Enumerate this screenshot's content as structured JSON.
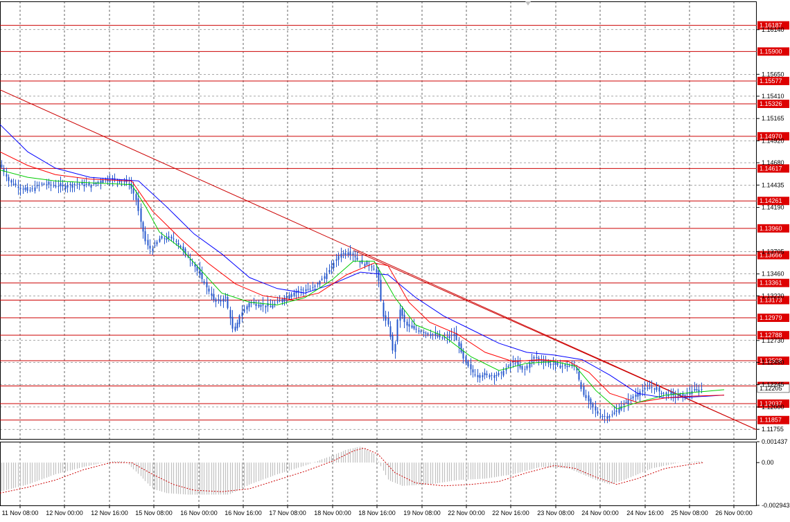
{
  "chart_data": [
    {
      "type": "candlestick",
      "symbol_panel": "main",
      "ylim": [
        1.1165,
        1.1645
      ],
      "price_ticks": [
        "1.16140",
        "1.15650",
        "1.15410",
        "1.15165",
        "1.14920",
        "1.14680",
        "1.14435",
        "1.14190",
        "1.13705",
        "1.13460",
        "1.13220",
        "1.12730",
        "1.12490",
        "1.12245",
        "1.12000",
        "1.11755"
      ],
      "time_labels": [
        "11 Nov 08:00",
        "12 Nov 00:00",
        "12 Nov 16:00",
        "15 Nov 08:00",
        "16 Nov 00:00",
        "16 Nov 16:00",
        "17 Nov 08:00",
        "18 Nov 00:00",
        "18 Nov 16:00",
        "19 Nov 08:00",
        "22 Nov 00:00",
        "22 Nov 16:00",
        "23 Nov 08:00",
        "24 Nov 00:00",
        "24 Nov 16:00",
        "25 Nov 08:00",
        "26 Nov 00:00"
      ],
      "horizontal_levels": [
        "1.16187",
        "1.15900",
        "1.15577",
        "1.15326",
        "1.14970",
        "1.14617",
        "1.14261",
        "1.13960",
        "1.13666",
        "1.13361",
        "1.13173",
        "1.12979",
        "1.12788",
        "1.12508",
        "1.12231",
        "1.12037",
        "1.11857"
      ],
      "current_price": "1.12205",
      "price_path": [
        [
          0,
          1.1466
        ],
        [
          12,
          1.1448
        ],
        [
          25,
          1.1442
        ],
        [
          40,
          1.1437
        ],
        [
          60,
          1.1445
        ],
        [
          90,
          1.1442
        ],
        [
          110,
          1.1445
        ],
        [
          130,
          1.1443
        ],
        [
          150,
          1.145
        ],
        [
          170,
          1.1449
        ],
        [
          185,
          1.1446
        ],
        [
          195,
          1.143
        ],
        [
          202,
          1.1405
        ],
        [
          210,
          1.138
        ],
        [
          218,
          1.1372
        ],
        [
          230,
          1.1385
        ],
        [
          250,
          1.1385
        ],
        [
          265,
          1.137
        ],
        [
          280,
          1.1355
        ],
        [
          295,
          1.1335
        ],
        [
          310,
          1.1315
        ],
        [
          325,
          1.132
        ],
        [
          337,
          1.128
        ],
        [
          345,
          1.13
        ],
        [
          360,
          1.1315
        ],
        [
          375,
          1.1312
        ],
        [
          390,
          1.131
        ],
        [
          410,
          1.132
        ],
        [
          430,
          1.1328
        ],
        [
          450,
          1.133
        ],
        [
          470,
          1.1345
        ],
        [
          490,
          1.1368
        ],
        [
          505,
          1.137
        ],
        [
          520,
          1.1358
        ],
        [
          535,
          1.1355
        ],
        [
          545,
          1.1345
        ],
        [
          552,
          1.13
        ],
        [
          560,
          1.129
        ],
        [
          568,
          1.1255
        ],
        [
          575,
          1.131
        ],
        [
          585,
          1.129
        ],
        [
          600,
          1.1285
        ],
        [
          620,
          1.128
        ],
        [
          640,
          1.1275
        ],
        [
          655,
          1.128
        ],
        [
          670,
          1.125
        ],
        [
          685,
          1.1235
        ],
        [
          700,
          1.1235
        ],
        [
          720,
          1.1235
        ],
        [
          740,
          1.125
        ],
        [
          755,
          1.124
        ],
        [
          770,
          1.1255
        ],
        [
          790,
          1.1248
        ],
        [
          810,
          1.1245
        ],
        [
          830,
          1.1245
        ],
        [
          840,
          1.1215
        ],
        [
          850,
          1.1205
        ],
        [
          865,
          1.119
        ],
        [
          880,
          1.119
        ],
        [
          895,
          1.12
        ],
        [
          910,
          1.121
        ],
        [
          925,
          1.1218
        ],
        [
          940,
          1.1222
        ],
        [
          955,
          1.1215
        ],
        [
          970,
          1.1213
        ],
        [
          985,
          1.1212
        ],
        [
          1000,
          1.1218
        ],
        [
          1015,
          1.122
        ]
      ],
      "trendlines": [
        {
          "color": "#cc0000",
          "from": [
            0,
            1.1548
          ],
          "to": [
            1092,
            1.1175
          ]
        },
        {
          "color": "#cc0000",
          "from": [
            510,
            1.1372
          ],
          "to": [
            1092,
            1.1175
          ]
        }
      ],
      "moving_averages": [
        {
          "color": "#0000ff",
          "points": [
            [
              0,
              1.151
            ],
            [
              40,
              1.148
            ],
            [
              80,
              1.1462
            ],
            [
              130,
              1.1452
            ],
            [
              200,
              1.1448
            ],
            [
              240,
              1.142
            ],
            [
              280,
              1.139
            ],
            [
              320,
              1.1368
            ],
            [
              360,
              1.1342
            ],
            [
              400,
              1.133
            ],
            [
              440,
              1.1325
            ],
            [
              480,
              1.1335
            ],
            [
              520,
              1.1348
            ],
            [
              560,
              1.1345
            ],
            [
              600,
              1.132
            ],
            [
              640,
              1.13
            ],
            [
              680,
              1.1285
            ],
            [
              720,
              1.127
            ],
            [
              760,
              1.126
            ],
            [
              800,
              1.1257
            ],
            [
              840,
              1.1252
            ],
            [
              880,
              1.1235
            ],
            [
              920,
              1.1215
            ],
            [
              960,
              1.121
            ],
            [
              1000,
              1.1211
            ],
            [
              1045,
              1.1213
            ]
          ]
        },
        {
          "color": "#ff0000",
          "points": [
            [
              0,
              1.148
            ],
            [
              40,
              1.1465
            ],
            [
              80,
              1.1455
            ],
            [
              130,
              1.145
            ],
            [
              190,
              1.1448
            ],
            [
              220,
              1.1415
            ],
            [
              260,
              1.1385
            ],
            [
              300,
              1.1358
            ],
            [
              340,
              1.1335
            ],
            [
              380,
              1.1322
            ],
            [
              420,
              1.1318
            ],
            [
              460,
              1.1325
            ],
            [
              500,
              1.1345
            ],
            [
              540,
              1.1358
            ],
            [
              560,
              1.1355
            ],
            [
              590,
              1.1315
            ],
            [
              620,
              1.1293
            ],
            [
              660,
              1.128
            ],
            [
              700,
              1.126
            ],
            [
              740,
              1.125
            ],
            [
              780,
              1.1252
            ],
            [
              820,
              1.125
            ],
            [
              850,
              1.1238
            ],
            [
              880,
              1.1215
            ],
            [
              920,
              1.1205
            ],
            [
              960,
              1.121
            ],
            [
              1000,
              1.1212
            ],
            [
              1045,
              1.1213
            ]
          ]
        },
        {
          "color": "#00cc00",
          "points": [
            [
              0,
              1.146
            ],
            [
              40,
              1.1452
            ],
            [
              80,
              1.1448
            ],
            [
              130,
              1.1446
            ],
            [
              190,
              1.1444
            ],
            [
              210,
              1.142
            ],
            [
              230,
              1.1392
            ],
            [
              260,
              1.1375
            ],
            [
              290,
              1.135
            ],
            [
              320,
              1.1325
            ],
            [
              360,
              1.1315
            ],
            [
              400,
              1.1312
            ],
            [
              440,
              1.132
            ],
            [
              480,
              1.134
            ],
            [
              510,
              1.136
            ],
            [
              540,
              1.136
            ],
            [
              570,
              1.132
            ],
            [
              600,
              1.129
            ],
            [
              640,
              1.1278
            ],
            [
              680,
              1.1255
            ],
            [
              720,
              1.124
            ],
            [
              760,
              1.1248
            ],
            [
              800,
              1.125
            ],
            [
              830,
              1.1245
            ],
            [
              860,
              1.1218
            ],
            [
              890,
              1.1198
            ],
            [
              920,
              1.1205
            ],
            [
              960,
              1.1213
            ],
            [
              1000,
              1.1216
            ],
            [
              1045,
              1.1219
            ]
          ]
        }
      ]
    },
    {
      "type": "bar",
      "symbol_panel": "oscillator",
      "ylim": [
        -0.002943,
        0.001437
      ],
      "ticks": [
        "0.001437",
        "0.00",
        "-0.002943"
      ],
      "histogram_color": "#c0c0c0",
      "signal_color": "#cc0000",
      "histogram": [
        [
          0,
          -0.002
        ],
        [
          40,
          -0.0015
        ],
        [
          80,
          -0.0008
        ],
        [
          120,
          -0.0003
        ],
        [
          160,
          0.0001
        ],
        [
          180,
          0.0001
        ],
        [
          200,
          -0.0008
        ],
        [
          220,
          -0.0018
        ],
        [
          240,
          -0.0021
        ],
        [
          270,
          -0.0022
        ],
        [
          300,
          -0.0022
        ],
        [
          330,
          -0.0022
        ],
        [
          360,
          -0.0015
        ],
        [
          400,
          -0.0008
        ],
        [
          440,
          -0.0002
        ],
        [
          480,
          0.0005
        ],
        [
          500,
          0.0009
        ],
        [
          520,
          0.0011
        ],
        [
          540,
          0.0006
        ],
        [
          560,
          -0.0012
        ],
        [
          580,
          -0.0016
        ],
        [
          620,
          -0.0015
        ],
        [
          660,
          -0.0012
        ],
        [
          700,
          -0.0011
        ],
        [
          740,
          -0.0008
        ],
        [
          780,
          -0.0003
        ],
        [
          820,
          -0.0004
        ],
        [
          860,
          -0.0012
        ],
        [
          880,
          -0.0015
        ],
        [
          900,
          -0.0012
        ],
        [
          940,
          -0.0004
        ],
        [
          980,
          0.0
        ],
        [
          1015,
          0.0001
        ]
      ],
      "signal": [
        [
          0,
          -0.0021
        ],
        [
          40,
          -0.0017
        ],
        [
          80,
          -0.0012
        ],
        [
          120,
          -0.0005
        ],
        [
          160,
          0.0
        ],
        [
          190,
          0.0
        ],
        [
          220,
          -0.0008
        ],
        [
          250,
          -0.0015
        ],
        [
          280,
          -0.0019
        ],
        [
          320,
          -0.002
        ],
        [
          360,
          -0.0018
        ],
        [
          400,
          -0.0012
        ],
        [
          440,
          -0.0006
        ],
        [
          480,
          0.0001
        ],
        [
          510,
          0.0008
        ],
        [
          525,
          0.001
        ],
        [
          545,
          0.0006
        ],
        [
          570,
          -0.0007
        ],
        [
          600,
          -0.0014
        ],
        [
          640,
          -0.0016
        ],
        [
          680,
          -0.0015
        ],
        [
          720,
          -0.0013
        ],
        [
          760,
          -0.0007
        ],
        [
          800,
          -0.0002
        ],
        [
          830,
          -0.0004
        ],
        [
          860,
          -0.001
        ],
        [
          890,
          -0.0015
        ],
        [
          920,
          -0.0011
        ],
        [
          960,
          -0.0004
        ],
        [
          1000,
          -0.0001
        ],
        [
          1015,
          0.0
        ]
      ]
    }
  ]
}
